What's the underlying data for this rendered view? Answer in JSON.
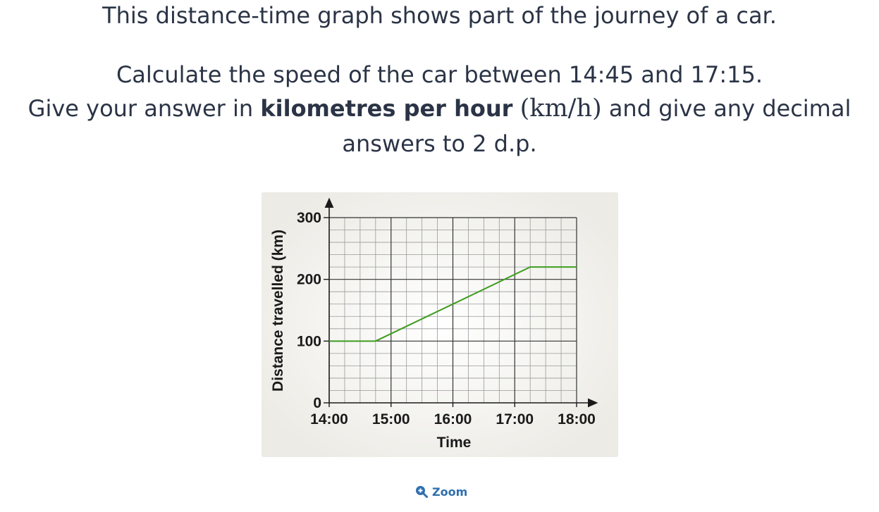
{
  "question": {
    "intro": "This distance-time graph shows part of the journey of a car.",
    "line1": "Calculate the speed of the car between 14:45 and 17:15.",
    "line2_pre": "Give your answer in ",
    "line2_bold": "kilometres per hour",
    "line2_math": "(km/h)",
    "line2_post": " and give any decimal",
    "line3": "answers to 2 d.p."
  },
  "chart_data": {
    "type": "line",
    "title": "",
    "xlabel": "Time",
    "ylabel": "Distance travelled (km)",
    "x_ticks": [
      "14:00",
      "15:00",
      "16:00",
      "17:00",
      "18:00"
    ],
    "y_ticks": [
      "0",
      "100",
      "200",
      "300"
    ],
    "xlim": [
      "14:00",
      "18:00"
    ],
    "ylim": [
      0,
      300
    ],
    "grid": true,
    "series": [
      {
        "color": "#3f9d1f",
        "points": [
          {
            "x": "14:00",
            "y": 100
          },
          {
            "x": "14:45",
            "y": 100
          },
          {
            "x": "17:15",
            "y": 220
          },
          {
            "x": "18:00",
            "y": 220
          }
        ]
      }
    ]
  },
  "zoom": {
    "label": "Zoom",
    "icon": "zoom-in-icon"
  }
}
